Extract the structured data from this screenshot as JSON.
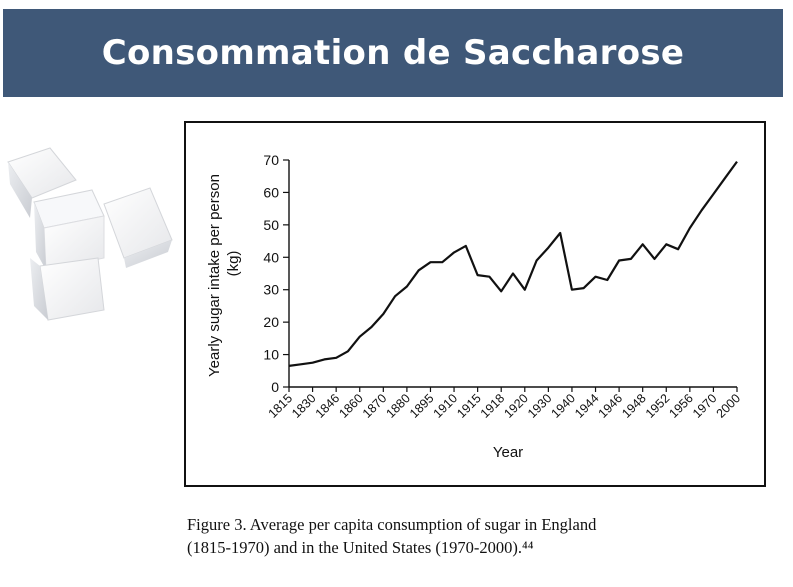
{
  "slide": {
    "title": "Consommation de Saccharose"
  },
  "caption": {
    "line1": "Figure 3. Average per capita consumption of sugar in England",
    "line2": "(1815-1970) and in the United States (1970-2000).⁴⁴"
  },
  "image": {
    "subject": "sugar-cubes"
  },
  "chart_data": {
    "type": "line",
    "xlabel": "Year",
    "ylabel_line1": "Yearly sugar intake per person",
    "ylabel_line2": "(kg)",
    "ylim": [
      0,
      70
    ],
    "yticks": [
      0,
      10,
      20,
      30,
      40,
      50,
      60,
      70
    ],
    "categories": [
      "1815",
      "1830",
      "1846",
      "1860",
      "1870",
      "1880",
      "1895",
      "1910",
      "1915",
      "1918",
      "1920",
      "1930",
      "1940",
      "1944",
      "1946",
      "1948",
      "1952",
      "1956",
      "1970",
      "2000"
    ],
    "series": [
      {
        "color": "#111111",
        "points": [
          [
            0,
            6.5
          ],
          [
            0.5,
            7
          ],
          [
            1,
            7.5
          ],
          [
            1.5,
            8.5
          ],
          [
            2,
            9
          ],
          [
            2.5,
            11
          ],
          [
            3,
            15.5
          ],
          [
            3.5,
            18.5
          ],
          [
            4,
            22.5
          ],
          [
            4.5,
            28
          ],
          [
            5,
            31
          ],
          [
            5.5,
            36
          ],
          [
            6,
            38.5
          ],
          [
            6.5,
            38.5
          ],
          [
            7,
            41.5
          ],
          [
            7.5,
            43.5
          ],
          [
            8,
            34.5
          ],
          [
            8.5,
            34
          ],
          [
            9,
            29.5
          ],
          [
            9.5,
            35
          ],
          [
            10,
            30
          ],
          [
            10.5,
            39
          ],
          [
            11,
            43
          ],
          [
            11.5,
            47.5
          ],
          [
            12,
            30
          ],
          [
            12.5,
            30.5
          ],
          [
            13,
            34
          ],
          [
            13.5,
            33
          ],
          [
            14,
            39
          ],
          [
            14.5,
            39.5
          ],
          [
            15,
            44
          ],
          [
            15.5,
            39.5
          ],
          [
            16,
            44
          ],
          [
            16.5,
            42.5
          ],
          [
            17,
            49
          ],
          [
            17.5,
            54.5
          ],
          [
            18,
            59.5
          ],
          [
            18.5,
            64.5
          ],
          [
            19,
            69.5
          ]
        ]
      }
    ],
    "grid": false,
    "legend": "none"
  }
}
